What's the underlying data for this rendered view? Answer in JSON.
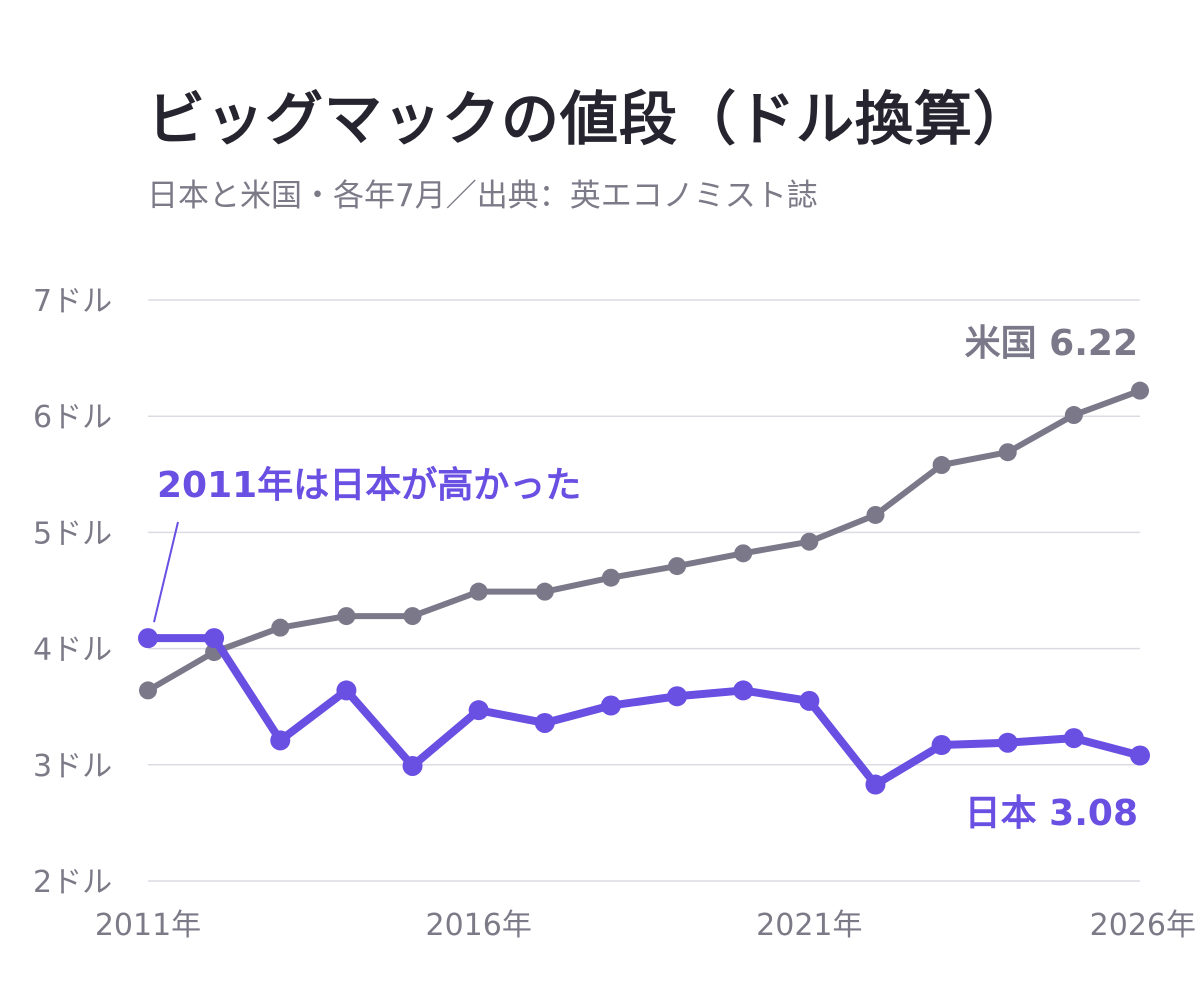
{
  "title": "ビッグマックの値段（ドル換算）",
  "subtitle": "日本と米国・各年7月／出典：英エコノミスト誌",
  "colors": {
    "us": "#7b7889",
    "japan": "#6a4fe3",
    "grid": "#dcdbe4",
    "text": "#7d7a88"
  },
  "chart_data": {
    "type": "line",
    "x": [
      2011,
      2012,
      2013,
      2014,
      2015,
      2016,
      2017,
      2018,
      2019,
      2020,
      2021,
      2022,
      2023,
      2024,
      2025,
      2026
    ],
    "xlim": [
      2011,
      2026
    ],
    "ylim": [
      2,
      7
    ],
    "x_ticks": [
      {
        "value": 2011,
        "label": "2011年"
      },
      {
        "value": 2016,
        "label": "2016年"
      },
      {
        "value": 2021,
        "label": "2021年"
      },
      {
        "value": 2026,
        "label": "2026年"
      }
    ],
    "y_ticks": [
      {
        "value": 2,
        "label": "2ドル"
      },
      {
        "value": 3,
        "label": "3ドル"
      },
      {
        "value": 4,
        "label": "4ドル"
      },
      {
        "value": 5,
        "label": "5ドル"
      },
      {
        "value": 6,
        "label": "6ドル"
      },
      {
        "value": 7,
        "label": "7ドル"
      }
    ],
    "grid": true,
    "series": [
      {
        "name": "米国",
        "end_label": "米国 6.22",
        "values": [
          3.64,
          3.97,
          4.18,
          4.28,
          4.28,
          4.49,
          4.49,
          4.61,
          4.71,
          4.82,
          4.92,
          5.15,
          5.58,
          5.69,
          6.01,
          6.22
        ]
      },
      {
        "name": "日本",
        "end_label": "日本 3.08",
        "values": [
          4.09,
          4.09,
          3.21,
          3.64,
          2.99,
          3.47,
          3.36,
          3.51,
          3.59,
          3.64,
          3.55,
          2.83,
          3.17,
          3.19,
          3.23,
          3.08
        ]
      }
    ],
    "annotations": [
      {
        "text": "2011年は日本が高かった",
        "x": 2011,
        "y": 4.09
      }
    ]
  }
}
